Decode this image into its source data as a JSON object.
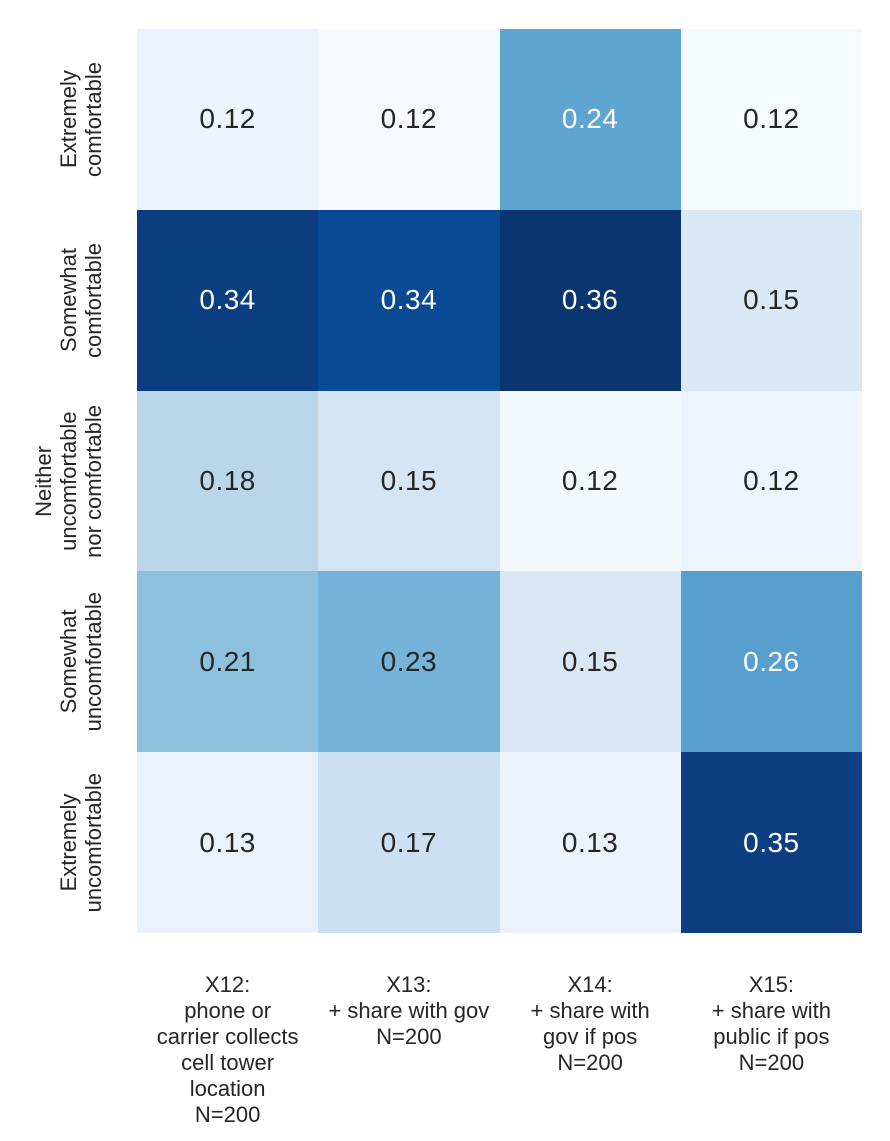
{
  "figure": {
    "background": "#ffffff"
  },
  "chart_data": {
    "type": "heatmap",
    "title": "",
    "xlabel": "",
    "ylabel": "",
    "colormap": "Blues",
    "legend": "none",
    "grid_lines": false,
    "value_range": [
      0.12,
      0.36
    ],
    "row_labels": [
      "Extremely\ncomfortable",
      "Somewhat\ncomfortable",
      "Neither\nuncomfortable\nnor comfortable",
      "Somewhat\nuncomfortable",
      "Extremely\nuncomfortable"
    ],
    "col_labels": [
      "X12:\nphone or\ncarrier collects\ncell tower\nlocation\nN=200",
      "X13:\n+ share with gov\nN=200",
      "X14:\n+ share with\ngov if pos\nN=200",
      "X15:\n+ share with\npublic if pos\nN=200"
    ],
    "values": [
      [
        0.12,
        0.12,
        0.24,
        0.12
      ],
      [
        0.34,
        0.34,
        0.36,
        0.15
      ],
      [
        0.18,
        0.15,
        0.12,
        0.12
      ],
      [
        0.21,
        0.23,
        0.15,
        0.26
      ],
      [
        0.13,
        0.17,
        0.13,
        0.35
      ]
    ],
    "cell_text": [
      [
        "0.12",
        "0.12",
        "0.24",
        "0.12"
      ],
      [
        "0.34",
        "0.34",
        "0.36",
        "0.15"
      ],
      [
        "0.18",
        "0.15",
        "0.12",
        "0.12"
      ],
      [
        "0.21",
        "0.23",
        "0.15",
        "0.26"
      ],
      [
        "0.13",
        "0.17",
        "0.13",
        "0.35"
      ]
    ],
    "cell_colors": [
      [
        "#ecf3fb",
        "#f5f9fe",
        "#5ea5d1",
        "#f5fafe"
      ],
      [
        "#0b3e80",
        "#0a4a93",
        "#0a356e",
        "#dbe8f5"
      ],
      [
        "#bad6ea",
        "#d5e5f4",
        "#f3f8fd",
        "#edf4fb"
      ],
      [
        "#8cc0dd",
        "#75b3d8",
        "#d9e7f5",
        "#569fce"
      ],
      [
        "#e9f1fa",
        "#cde0f1",
        "#eaf2fa",
        "#0c3e81"
      ]
    ],
    "text_colors": [
      [
        "#262626",
        "#262626",
        "#ffffff",
        "#262626"
      ],
      [
        "#ffffff",
        "#ffffff",
        "#ffffff",
        "#262626"
      ],
      [
        "#262626",
        "#262626",
        "#262626",
        "#262626"
      ],
      [
        "#262626",
        "#262626",
        "#262626",
        "#ffffff"
      ],
      [
        "#262626",
        "#262626",
        "#262626",
        "#ffffff"
      ]
    ]
  }
}
